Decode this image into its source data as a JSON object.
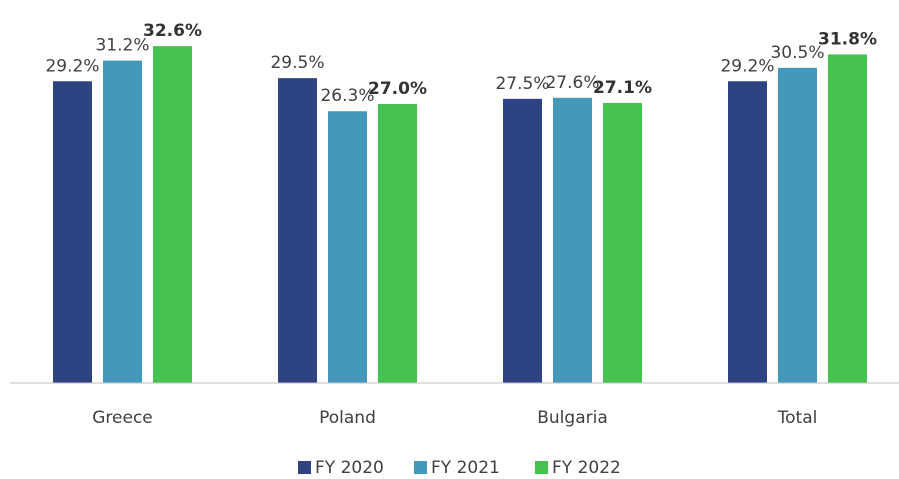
{
  "chart_data": {
    "type": "bar",
    "categories": [
      "Greece",
      "Poland",
      "Bulgaria",
      "Total"
    ],
    "series": [
      {
        "name": "FY 2020",
        "color": "#2e4482",
        "values": [
          29.2,
          29.5,
          27.5,
          29.2
        ],
        "value_labels": [
          "29.2%",
          "29.5%",
          "27.5%",
          "29.2%"
        ],
        "label_bold": false
      },
      {
        "name": "FY 2021",
        "color": "#4499bb",
        "values": [
          31.2,
          26.3,
          27.6,
          30.5
        ],
        "value_labels": [
          "31.2%",
          "26.3%",
          "27.6%",
          "30.5%"
        ],
        "label_bold": false
      },
      {
        "name": "FY 2022",
        "color": "#45c24f",
        "values": [
          32.6,
          27.0,
          27.1,
          31.8
        ],
        "value_labels": [
          "32.6%",
          "27.0%",
          "27.1%",
          "31.8%"
        ],
        "label_bold": true
      }
    ],
    "ylim": [
      0,
      33
    ],
    "legend": "bottom"
  }
}
